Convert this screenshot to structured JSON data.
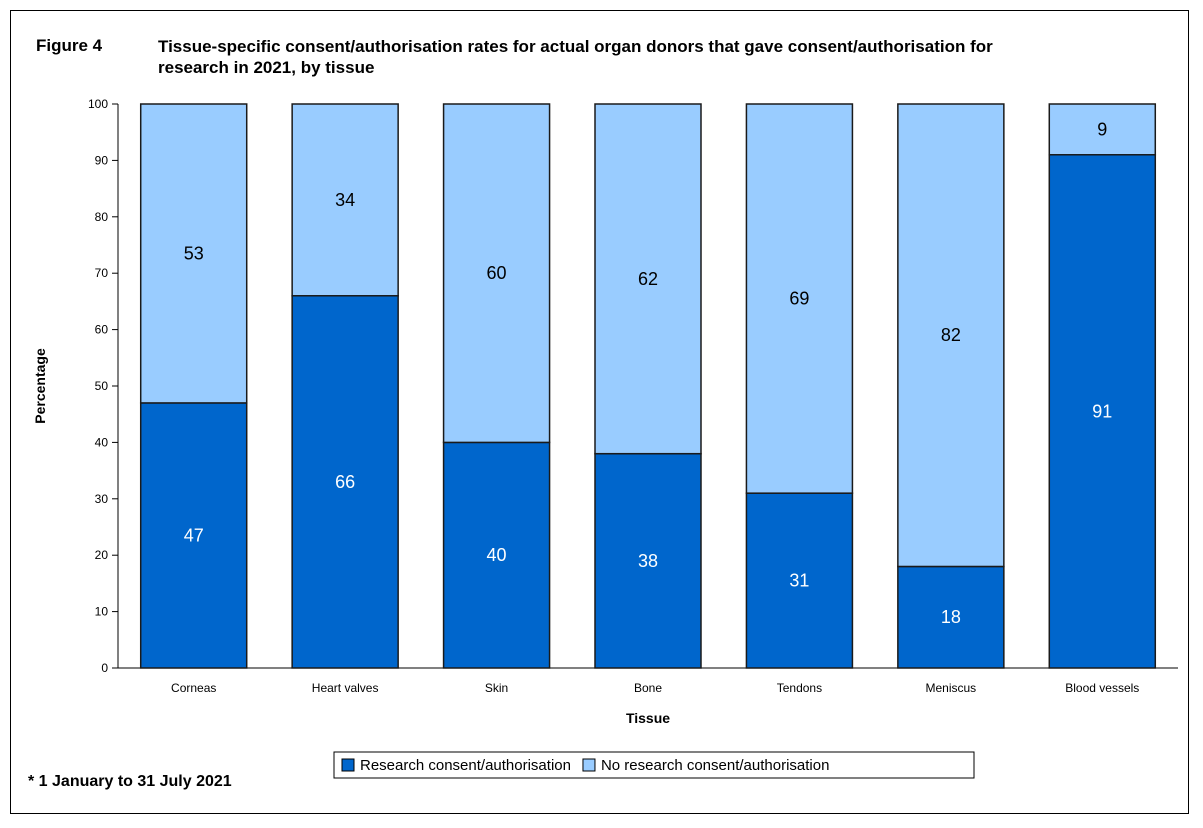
{
  "figure": {
    "label": "Figure 4",
    "title": "Tissue-specific consent/authorisation rates for actual organ donors that gave consent/authorisation for research in 2021, by tissue",
    "footnote": "* 1 January to 31 July 2021"
  },
  "chart_data": {
    "type": "bar",
    "stacked": true,
    "title": "Tissue-specific consent/authorisation rates for actual organ donors that gave consent/authorisation for research in 2021, by tissue",
    "xlabel": "Tissue",
    "ylabel": "Percentage",
    "ylim": [
      0,
      100
    ],
    "yticks": [
      0,
      10,
      20,
      30,
      40,
      50,
      60,
      70,
      80,
      90,
      100
    ],
    "grid": false,
    "legend_position": "bottom",
    "categories": [
      "Corneas",
      "Heart valves",
      "Skin",
      "Bone",
      "Tendons",
      "Meniscus",
      "Blood vessels"
    ],
    "series": [
      {
        "name": "Research consent/authorisation",
        "color": "#0066cc",
        "label_color": "#ffffff",
        "values": [
          47,
          66,
          40,
          38,
          31,
          18,
          91
        ]
      },
      {
        "name": "No research consent/authorisation",
        "color": "#99ccff",
        "label_color": "#000000",
        "values": [
          53,
          34,
          60,
          62,
          69,
          82,
          9
        ]
      }
    ]
  }
}
